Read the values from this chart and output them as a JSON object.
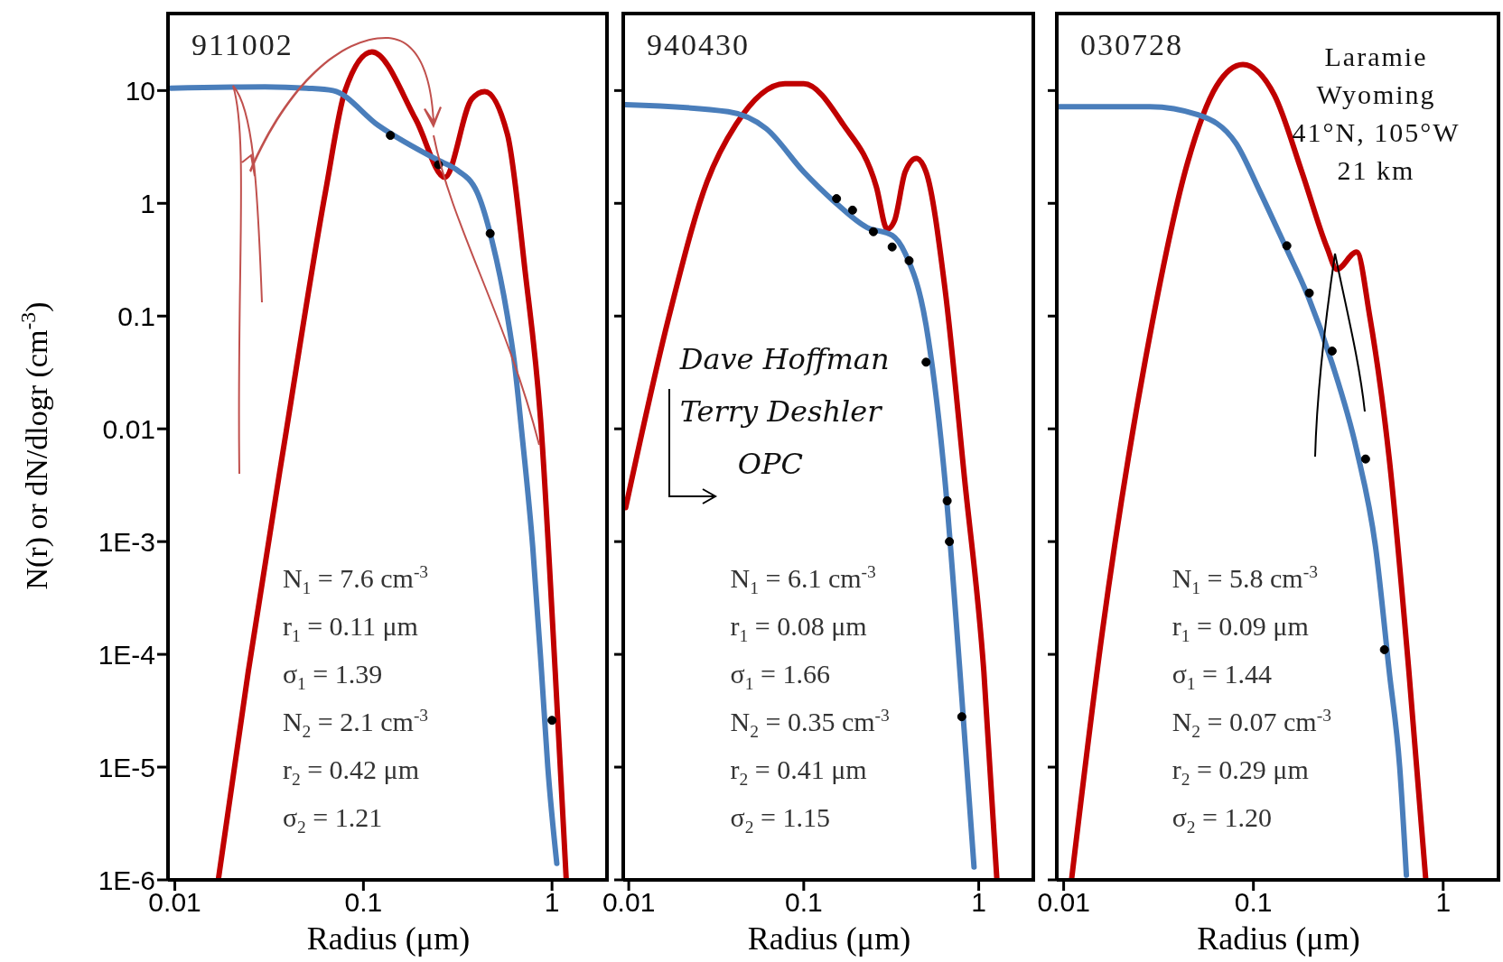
{
  "chart_data": [
    {
      "type": "line",
      "title": "911002",
      "xlabel": "Radius (μm)",
      "ylabel": "N(r)   or   dN/dlogr (cm$^{-3}$)",
      "log": "xy",
      "xlim": [
        0.0092,
        2
      ],
      "xticks": [
        0.01,
        0.1,
        1
      ],
      "ylim": [
        1e-06,
        50
      ],
      "yticks": [
        {
          "value": 1e-06,
          "label": "1E-6"
        },
        {
          "value": 1e-05,
          "label": "1E-5"
        },
        {
          "value": 0.0001,
          "label": "1E-4"
        },
        {
          "value": 0.001,
          "label": "1E-3"
        },
        0.01,
        0.1,
        1,
        10
      ],
      "series": [
        {
          "color": "#c00000",
          "x": [
            0.017,
            0.0245,
            0.039,
            0.063,
            0.08,
            0.111,
            0.19,
            0.27,
            0.375,
            0.44,
            0.58,
            0.72,
            0.87,
            1.04,
            1.19
          ],
          "values": [
            1e-06,
            7e-05,
            0.0096,
            1.28,
            10,
            22,
            5.5,
            1.7,
            8.4,
            9.8,
            4.1,
            0.25,
            0.012,
            7e-05,
            1e-06
          ]
        },
        {
          "color": "#4a7ebb",
          "x": [
            0.0095,
            0.03,
            0.05,
            0.069,
            0.12,
            0.25,
            0.31,
            0.4,
            0.48,
            0.58,
            0.63,
            0.69,
            0.79,
            0.88,
            0.95,
            1.06
          ],
          "values": [
            10.5,
            10.8,
            10.5,
            10,
            4.9,
            2.4,
            2,
            1.26,
            0.47,
            0.1,
            0.04,
            0.0096,
            0.0009,
            7e-05,
            1e-05,
            1.4e-06
          ]
        },
        {
          "type": "scatter",
          "color": "#000000",
          "marker": "circle",
          "x": [
            0.139,
            0.25,
            0.47,
            1.0
          ],
          "values": [
            4.0,
            2.2,
            0.54,
            2.6e-05
          ]
        }
      ],
      "annotations": [
        "N$_{1}$ = 7.6 cm$^{-3}$",
        "r$_{1}$ = 0.11 μm",
        "σ$_{1}$ = 1.39",
        "N$_{2}$ = 2.1 cm$^{-3}$",
        "r$_{2}$ = 0.42 μm",
        "σ$_{2}$ = 1.21"
      ]
    },
    {
      "type": "line",
      "title": "940430",
      "xlabel": "Radius (μm)",
      "log": "xy",
      "tick_labels": "x",
      "xlim": [
        0.0093,
        2.1
      ],
      "xticks": [
        0.01,
        0.1,
        1
      ],
      "ylim": [
        1e-06,
        50
      ],
      "yticks": [
        1e-06,
        1e-05,
        0.0001,
        0.001,
        0.01,
        0.1,
        1,
        10
      ],
      "series": [
        {
          "color": "#c00000",
          "x": [
            0.0096,
            0.017,
            0.028,
            0.041,
            0.078,
            0.1,
            0.168,
            0.26,
            0.3,
            0.33,
            0.38,
            0.44,
            0.5,
            0.64,
            0.83,
            1.07,
            1.27
          ],
          "values": [
            0.002,
            0.1,
            1.55,
            5,
            11.5,
            11.5,
            5,
            1.4,
            0.59,
            0.7,
            1.9,
            2.5,
            1.9,
            0.18,
            0.0036,
            7e-05,
            1e-06
          ]
        },
        {
          "color": "#4a7ebb",
          "x": [
            0.0096,
            0.037,
            0.061,
            0.1,
            0.148,
            0.23,
            0.32,
            0.38,
            0.5,
            0.64,
            0.78,
            0.94
          ],
          "values": [
            7.5,
            6.5,
            4.6,
            1.9,
            1.05,
            0.61,
            0.52,
            0.36,
            0.083,
            0.0036,
            7.2e-05,
            1.3e-06
          ]
        },
        {
          "type": "scatter",
          "color": "#000000",
          "marker": "circle",
          "x": [
            0.154,
            0.19,
            0.25,
            0.32,
            0.4,
            0.5,
            0.66,
            0.68,
            0.8
          ],
          "values": [
            1.1,
            0.87,
            0.56,
            0.41,
            0.31,
            0.039,
            0.0023,
            0.001,
            2.8e-05
          ]
        }
      ],
      "annotations": [
        "N$_{1}$ = 6.1 cm$^{-3}$",
        "r$_{1}$ = 0.08 μm",
        "σ$_{1}$ = 1.66",
        "N$_{2}$ = 0.35 cm$^{-3}$",
        "r$_{2}$ = 0.41 μm",
        "σ$_{2}$ = 1.15",
        "Dave Hoffman",
        "Terry Deshler",
        "OPC"
      ]
    },
    {
      "type": "line",
      "title": "030728",
      "xlabel": "Radius (μm)",
      "log": "xy",
      "tick_labels": "x",
      "xlim": [
        0.0092,
        2
      ],
      "xticks": [
        0.01,
        0.1,
        1
      ],
      "ylim": [
        1e-06,
        50
      ],
      "yticks": [
        1e-06,
        1e-05,
        0.0001,
        0.001,
        0.01,
        0.1,
        1,
        10
      ],
      "series": [
        {
          "color": "#c00000",
          "x": [
            0.011,
            0.016,
            0.0285,
            0.045,
            0.064,
            0.088,
            0.129,
            0.18,
            0.245,
            0.275,
            0.35,
            0.41,
            0.52,
            0.66,
            0.81
          ],
          "values": [
            1e-06,
            0.00016,
            0.068,
            2.3,
            11,
            17,
            9.1,
            1.9,
            0.4,
            0.26,
            0.37,
            0.1,
            0.0054,
            7e-05,
            1e-06
          ]
        },
        {
          "color": "#4a7ebb",
          "x": [
            0.0094,
            0.0285,
            0.051,
            0.081,
            0.108,
            0.145,
            0.194,
            0.26,
            0.35,
            0.44,
            0.52,
            0.59,
            0.64
          ],
          "values": [
            7.2,
            7.2,
            6.1,
            3.4,
            1.28,
            0.44,
            0.15,
            0.038,
            0.0065,
            0.0009,
            7e-05,
            1e-05,
            1.1e-06
          ]
        },
        {
          "type": "scatter",
          "color": "#000000",
          "marker": "circle",
          "x": [
            0.15,
            0.197,
            0.26,
            0.39,
            0.49
          ],
          "values": [
            0.42,
            0.16,
            0.049,
            0.0054,
            0.00011
          ]
        }
      ],
      "annotations": [
        "N$_{1}$ = 5.8 cm$^{-3}$",
        "r$_{1}$ = 0.09 μm",
        "σ$_{1}$ = 1.44",
        "N$_{2}$ = 0.07 cm$^{-3}$",
        "r$_{2}$ = 0.29 μm",
        "σ$_{2}$ = 1.20",
        "Laramie",
        "Wyoming",
        "41°N, 105°W",
        "21 km"
      ]
    }
  ]
}
